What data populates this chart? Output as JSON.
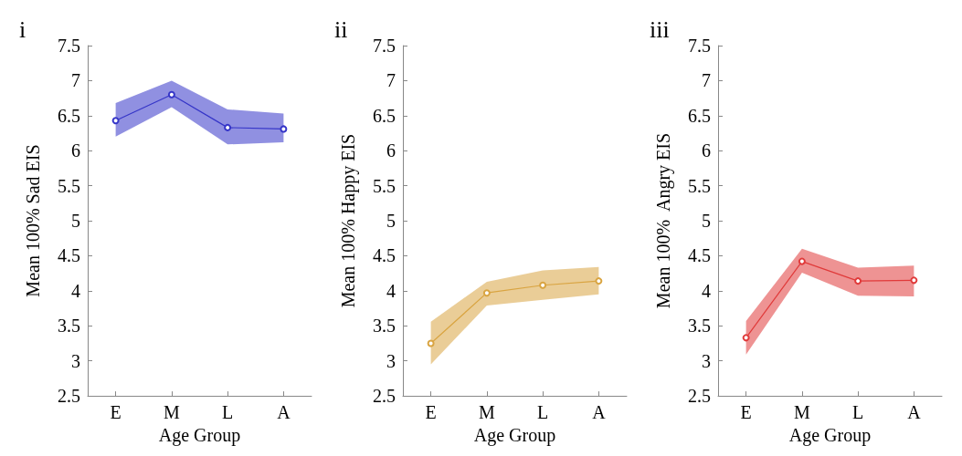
{
  "chart_data": [
    {
      "type": "line",
      "title": "i",
      "xlabel": "Age Group",
      "ylabel": "Mean 100% Sad EIS",
      "categories": [
        "E",
        "M",
        "L",
        "A"
      ],
      "series": [
        {
          "color": "#3535c8",
          "values": [
            6.43,
            6.8,
            6.33,
            6.31
          ],
          "lower": [
            6.2,
            6.62,
            6.09,
            6.12
          ],
          "upper": [
            6.68,
            7.0,
            6.59,
            6.53
          ]
        }
      ],
      "ylim": [
        2.5,
        7.5
      ],
      "yticks": [
        2.5,
        3,
        3.5,
        4,
        4.5,
        5,
        5.5,
        6,
        6.5,
        7,
        7.5
      ],
      "grid": false,
      "marker": "circle",
      "line_style": "solid"
    },
    {
      "type": "line",
      "title": "ii",
      "xlabel": "Age Group",
      "ylabel": "Mean 100% Happy EIS",
      "categories": [
        "E",
        "M",
        "L",
        "A"
      ],
      "series": [
        {
          "color": "#d9a441",
          "values": [
            3.25,
            3.97,
            4.08,
            4.14
          ],
          "lower": [
            2.95,
            3.79,
            3.87,
            3.95
          ],
          "upper": [
            3.56,
            4.13,
            4.29,
            4.34
          ]
        }
      ],
      "ylim": [
        2.5,
        7.5
      ],
      "yticks": [
        2.5,
        3,
        3.5,
        4,
        4.5,
        5,
        5.5,
        6,
        6.5,
        7,
        7.5
      ],
      "grid": false,
      "marker": "circle",
      "line_style": "solid"
    },
    {
      "type": "line",
      "title": "iii",
      "xlabel": "Age Group",
      "ylabel": "Mean 100%  Angry EIS",
      "categories": [
        "E",
        "M",
        "L",
        "A"
      ],
      "series": [
        {
          "color": "#e03a3a",
          "values": [
            3.33,
            4.42,
            4.14,
            4.15
          ],
          "lower": [
            3.09,
            4.26,
            3.93,
            3.92
          ],
          "upper": [
            3.57,
            4.6,
            4.33,
            4.36
          ]
        }
      ],
      "ylim": [
        2.5,
        7.5
      ],
      "yticks": [
        2.5,
        3,
        3.5,
        4,
        4.5,
        5,
        5.5,
        6,
        6.5,
        7,
        7.5
      ],
      "grid": false,
      "marker": "circle",
      "line_style": "solid"
    }
  ]
}
